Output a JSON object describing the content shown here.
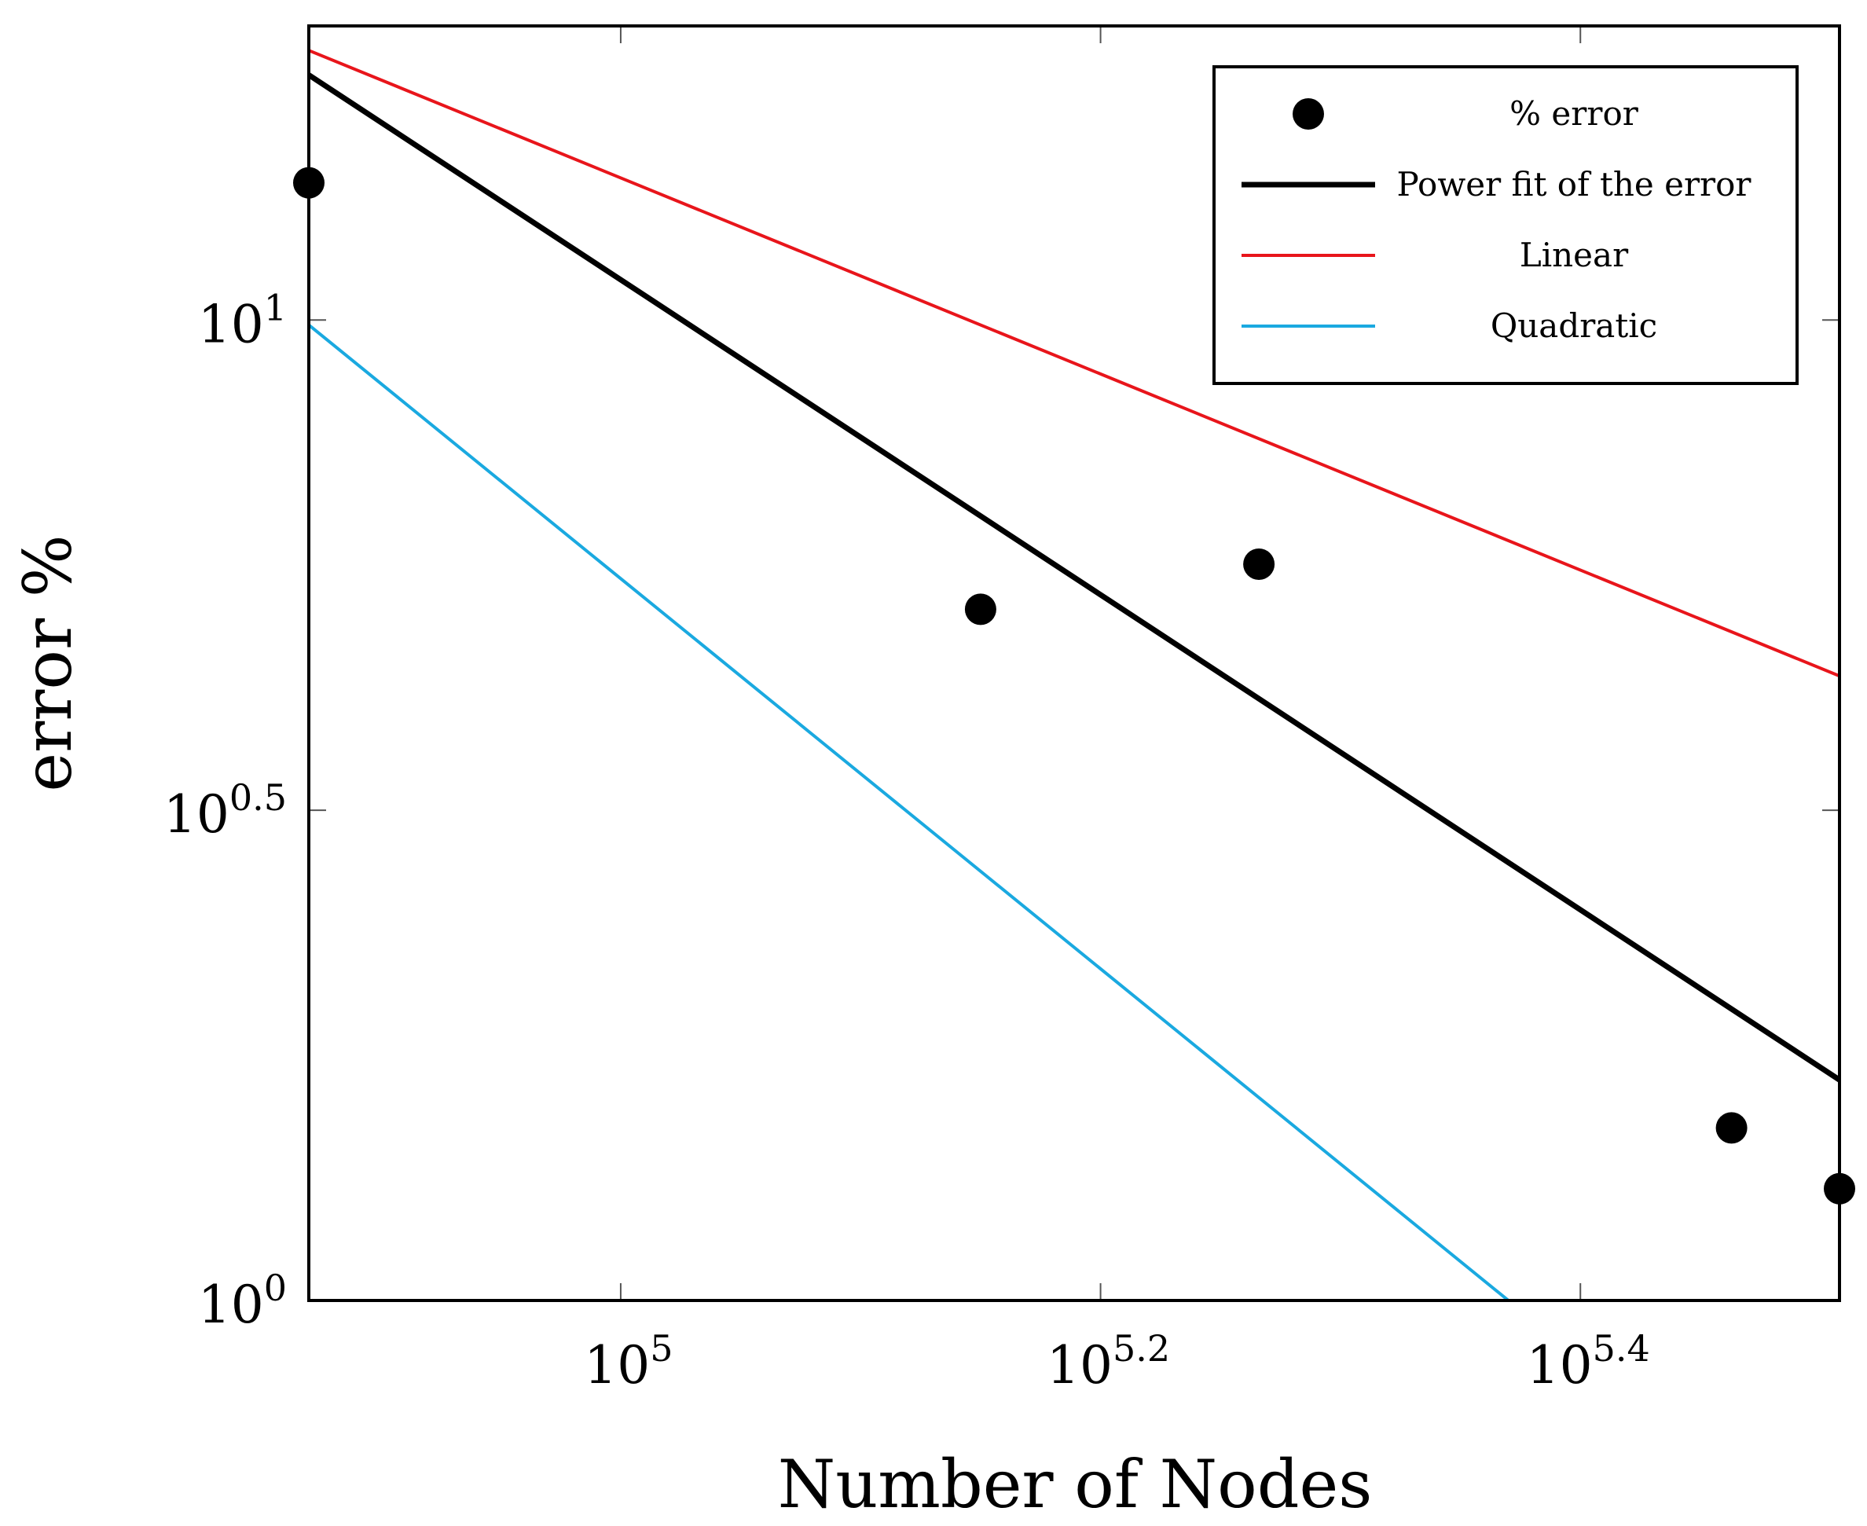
{
  "chart_data": {
    "type": "scatter",
    "title": "",
    "xlabel": "Number of Nodes",
    "ylabel": "error %",
    "xscale": "log10",
    "yscale": "log10",
    "xlim_log10": [
      4.87,
      5.508
    ],
    "ylim_log10": [
      0,
      1.3
    ],
    "grid": false,
    "legend_position": "top-right",
    "x_ticks": [
      {
        "base": "10",
        "exp": "5",
        "log10": 5.0
      },
      {
        "base": "10",
        "exp": "5.2",
        "log10": 5.2
      },
      {
        "base": "10",
        "exp": "5.4",
        "log10": 5.4
      }
    ],
    "y_ticks": [
      {
        "base": "10",
        "exp": "0",
        "log10": 0
      },
      {
        "base": "10",
        "exp": "0.5",
        "log10": 0.5
      },
      {
        "base": "10",
        "exp": "1",
        "log10": 1.0
      }
    ],
    "series": [
      {
        "name": "% error",
        "kind": "markers",
        "color": "#000000",
        "points_log10": [
          [
            4.87,
            1.14
          ],
          [
            5.15,
            0.705
          ],
          [
            5.266,
            0.751
          ],
          [
            5.463,
            0.176
          ],
          [
            5.508,
            0.114
          ]
        ]
      },
      {
        "name": "Power fit of the error",
        "kind": "line",
        "color": "#000000",
        "points_log10": [
          [
            4.87,
            1.25
          ],
          [
            5.508,
            0.225
          ]
        ]
      },
      {
        "name": "Linear",
        "kind": "line",
        "color": "#e8151b",
        "points_log10": [
          [
            4.87,
            1.275
          ],
          [
            5.508,
            0.637
          ]
        ]
      },
      {
        "name": "Quadratic",
        "kind": "line",
        "color": "#1aa9e0",
        "points_log10": [
          [
            4.87,
            0.995
          ],
          [
            5.37,
            0.0
          ]
        ]
      }
    ]
  }
}
